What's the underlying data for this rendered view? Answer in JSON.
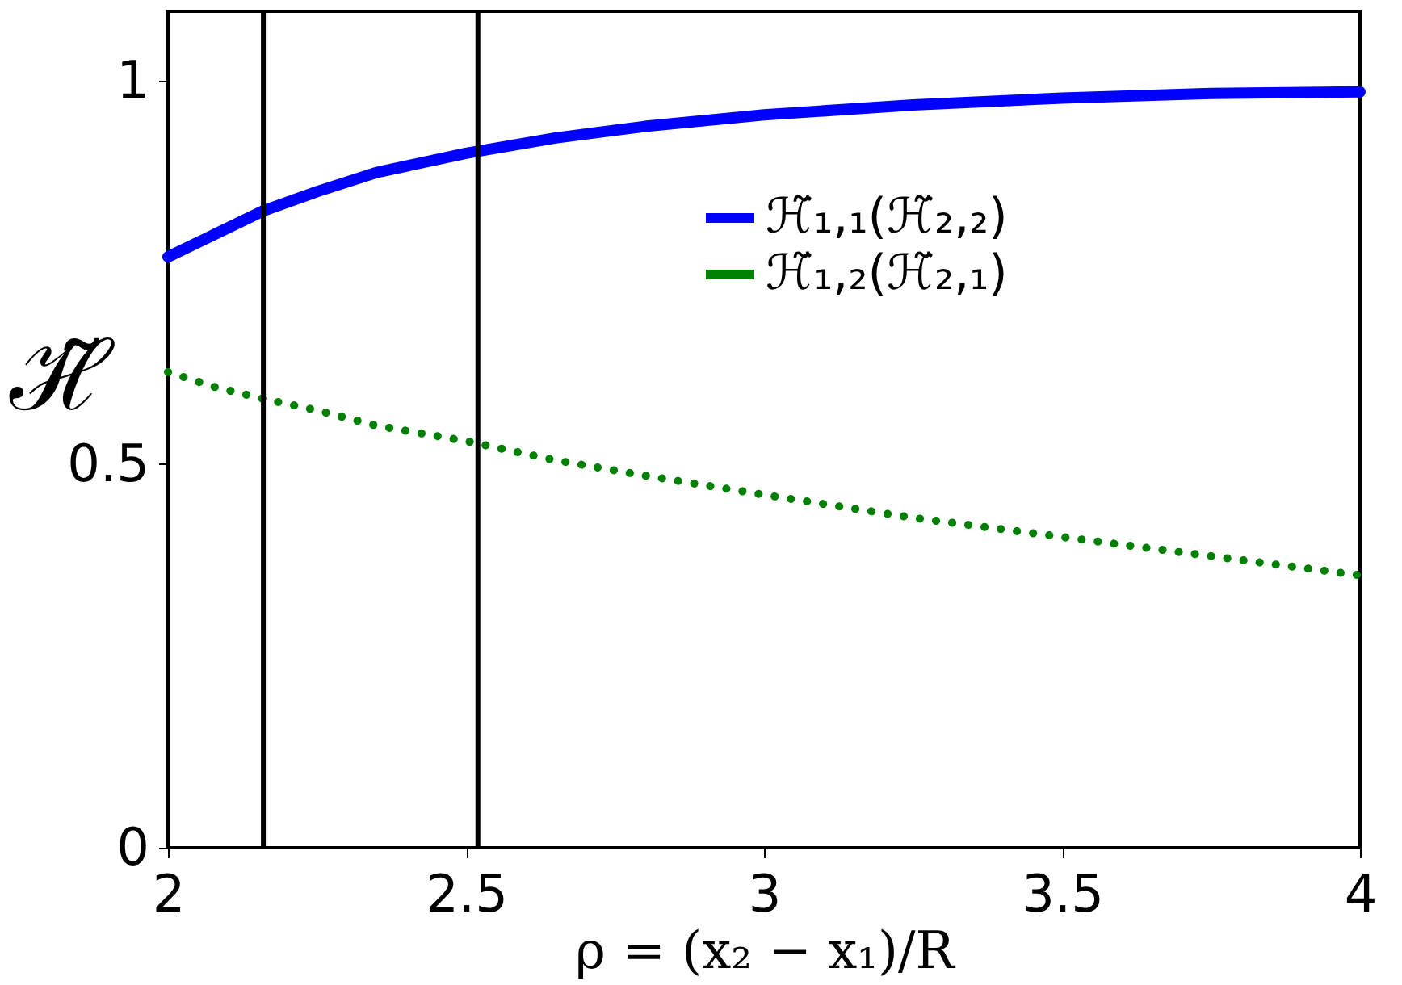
{
  "chart_data": {
    "type": "line",
    "xlabel": "ρ = (x₂ − x₁)/R",
    "ylabel": "ℋ̃",
    "x": [
      2,
      2.08,
      2.16,
      2.25,
      2.35,
      2.5,
      2.65,
      2.8,
      3,
      3.25,
      3.5,
      3.75,
      4
    ],
    "series": [
      {
        "name": "ℋ̃₁,₁(ℋ̃₂,₂)",
        "color": "#0000ff",
        "line_style": "solid",
        "values": [
          0.77,
          0.8,
          0.83,
          0.855,
          0.88,
          0.905,
          0.925,
          0.94,
          0.955,
          0.968,
          0.977,
          0.983,
          0.985
        ]
      },
      {
        "name": "ℋ̃₁,₂(ℋ̃₂,₁)",
        "color": "#008000",
        "line_style": "dotted",
        "values": [
          0.62,
          0.6,
          0.585,
          0.57,
          0.55,
          0.53,
          0.505,
          0.485,
          0.46,
          0.43,
          0.405,
          0.38,
          0.355
        ]
      }
    ],
    "xlim": [
      2,
      4
    ],
    "xticks": [
      2,
      2.5,
      3,
      3.5,
      4
    ],
    "ylim": [
      0,
      1.09
    ],
    "yticks": [
      0,
      0.5,
      1
    ],
    "ref_lines": [
      {
        "axis": "x",
        "value": 2.16,
        "color": "#000000"
      },
      {
        "axis": "x",
        "value": 2.52,
        "color": "#000000"
      }
    ],
    "grid": false,
    "legend": "top right",
    "marker": "none"
  }
}
